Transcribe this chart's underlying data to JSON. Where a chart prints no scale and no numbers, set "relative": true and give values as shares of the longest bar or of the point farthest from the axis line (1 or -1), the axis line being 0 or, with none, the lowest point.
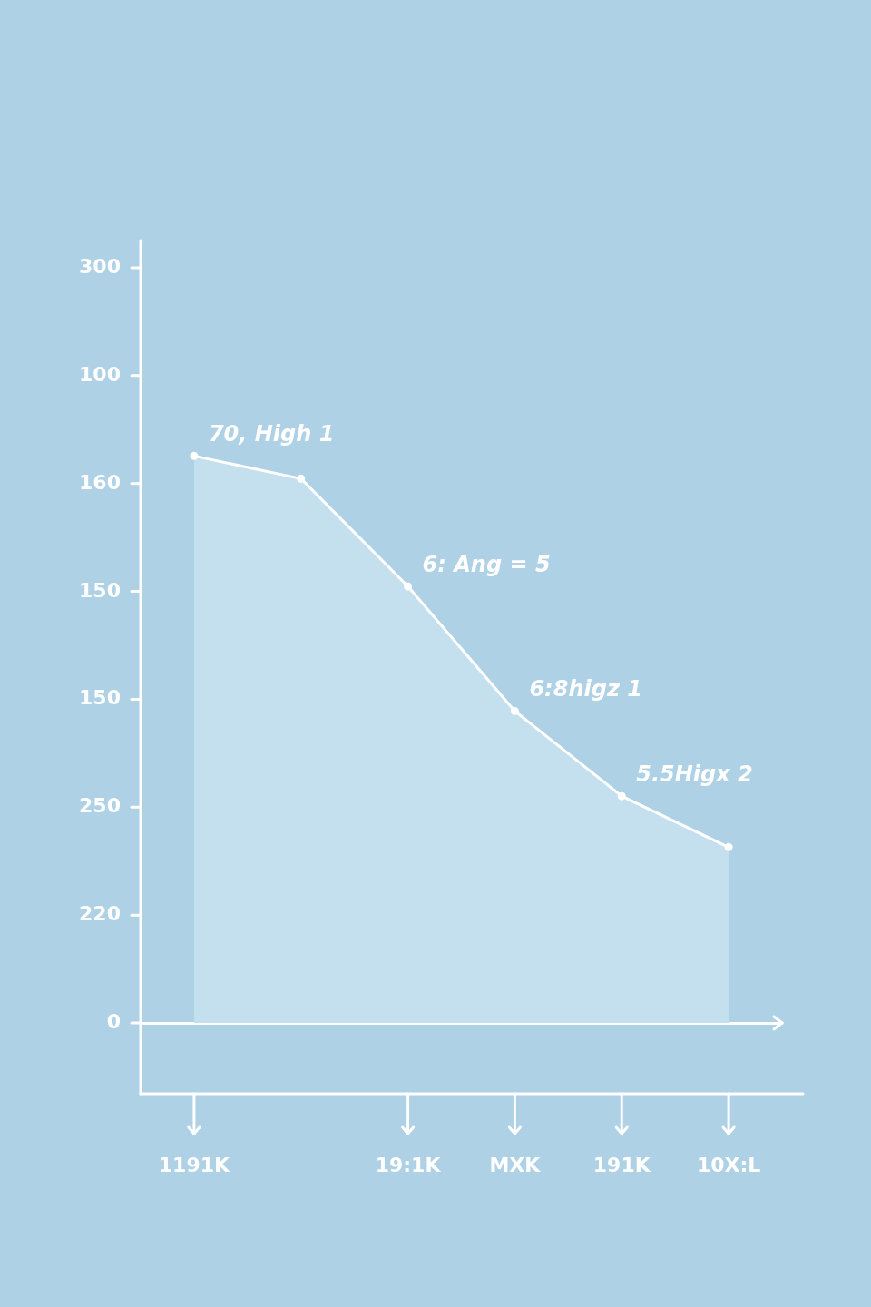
{
  "chart_data": {
    "type": "area",
    "relative": true,
    "categories": [
      "1191K",
      null,
      "19:1K",
      "MXK",
      "191K",
      "10X:L"
    ],
    "series": [
      {
        "color": "#ffffff",
        "values": [
          1,
          0.96,
          0.77,
          0.55,
          0.4,
          0.31
        ]
      }
    ],
    "annotations": [
      "300",
      "100",
      "160",
      "150",
      "150",
      "250",
      "220",
      "0",
      {
        "text": "70, High 1",
        "x": "1191K",
        "y": 1
      },
      {
        "text": "6: Ang = 5",
        "x": "19:1K",
        "y": 0.77
      },
      {
        "text": "6:8higz 1",
        "x": "MXK",
        "y": 0.55
      },
      {
        "text": "5.5Higx 2",
        "x": "191K",
        "y": 0.4
      }
    ],
    "marker": "circle"
  }
}
